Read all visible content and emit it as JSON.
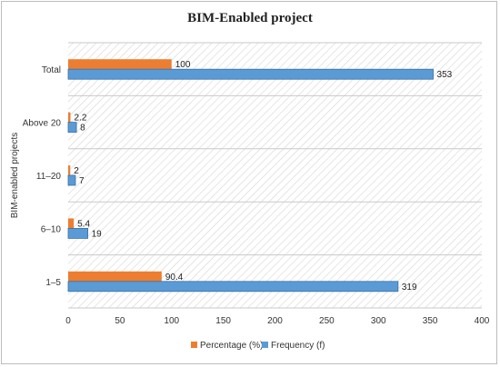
{
  "chart_data": {
    "type": "bar",
    "orientation": "horizontal",
    "title": "BIM-Enabled project",
    "ylabel": "BIM-enabled projects",
    "xlabel": "",
    "categories": [
      "1–5",
      "6–10",
      "11–20",
      "Above 20",
      "Total"
    ],
    "series": [
      {
        "name": "Percentage (%)",
        "values": [
          90.4,
          5.4,
          2,
          2.2,
          100
        ],
        "labels": [
          "90.4",
          "5.4",
          "2",
          "2.2",
          "100"
        ],
        "color": "#ed7d31"
      },
      {
        "name": "Frequency (f)",
        "values": [
          319,
          19,
          7,
          8,
          353
        ],
        "labels": [
          "319",
          "19",
          "7",
          "8",
          "353"
        ],
        "color": "#5b9bd5"
      }
    ],
    "xlim": [
      0,
      400
    ],
    "xticks": [
      "0",
      "50",
      "100",
      "150",
      "200",
      "250",
      "300",
      "350",
      "400"
    ],
    "grid": false,
    "background": "hatched",
    "legend": "bottom"
  }
}
